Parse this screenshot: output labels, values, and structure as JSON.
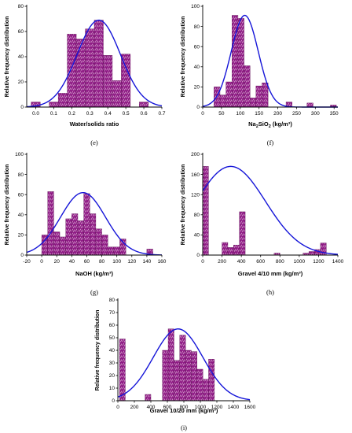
{
  "chart_data": [
    {
      "type": "bar",
      "panel_label": "(e)",
      "xlabel": "Water/solids ratio",
      "ylabel": "Relative frequency distribution",
      "xlim": [
        -0.05,
        0.7
      ],
      "ylim": [
        0,
        80
      ],
      "xticks": [
        0.0,
        0.1,
        0.2,
        0.3,
        0.4,
        0.5,
        0.6,
        0.7
      ],
      "xtick_labels": [
        "0.0",
        "0.1",
        "0.2",
        "0.3",
        "0.4",
        "0.5",
        "0.6",
        "0.7"
      ],
      "yticks": [
        0,
        20,
        40,
        60,
        80
      ],
      "ytick_labels": [
        "0",
        "20",
        "40",
        "60",
        "80"
      ],
      "bin_width": 0.05,
      "bins": [
        {
          "x0": -0.025,
          "value": 4
        },
        {
          "x0": 0.025,
          "value": 0
        },
        {
          "x0": 0.075,
          "value": 4
        },
        {
          "x0": 0.125,
          "value": 11
        },
        {
          "x0": 0.175,
          "value": 58
        },
        {
          "x0": 0.225,
          "value": 54
        },
        {
          "x0": 0.275,
          "value": 62
        },
        {
          "x0": 0.325,
          "value": 69
        },
        {
          "x0": 0.375,
          "value": 41
        },
        {
          "x0": 0.425,
          "value": 21
        },
        {
          "x0": 0.475,
          "value": 42
        },
        {
          "x0": 0.525,
          "value": 0
        },
        {
          "x0": 0.575,
          "value": 4
        }
      ],
      "fit_curve": {
        "mean": 0.35,
        "sd": 0.12,
        "peak": 69
      }
    },
    {
      "type": "bar",
      "panel_label": "(f)",
      "xlabel_parts": [
        "Na",
        "2",
        "SiO",
        "2",
        " (kg/m³)"
      ],
      "ylabel": "Relative frequency distribution",
      "xlim": [
        0,
        360
      ],
      "ylim": [
        0,
        100
      ],
      "xticks": [
        0,
        50,
        100,
        150,
        200,
        250,
        300,
        350
      ],
      "xtick_labels": [
        "0",
        "50",
        "100",
        "150",
        "200",
        "250",
        "300",
        "350"
      ],
      "yticks": [
        0,
        20,
        40,
        60,
        80,
        100
      ],
      "ytick_labels": [
        "0",
        "20",
        "40",
        "60",
        "80",
        "100"
      ],
      "bin_width": 16,
      "bins": [
        {
          "x0": 30,
          "value": 20
        },
        {
          "x0": 46,
          "value": 12
        },
        {
          "x0": 62,
          "value": 25
        },
        {
          "x0": 78,
          "value": 91
        },
        {
          "x0": 94,
          "value": 88
        },
        {
          "x0": 110,
          "value": 41
        },
        {
          "x0": 126,
          "value": 9
        },
        {
          "x0": 142,
          "value": 21
        },
        {
          "x0": 158,
          "value": 24
        },
        {
          "x0": 222,
          "value": 5
        },
        {
          "x0": 278,
          "value": 4
        },
        {
          "x0": 340,
          "value": 2
        }
      ],
      "fit_curve": {
        "mean": 112,
        "sd": 36,
        "peak": 91
      }
    },
    {
      "type": "bar",
      "panel_label": "(g)",
      "xlabel": "NaOH (kg/m³)",
      "ylabel": "Relative frequency distribution",
      "xlim": [
        -20,
        160
      ],
      "ylim": [
        0,
        100
      ],
      "xticks": [
        -20,
        0,
        20,
        40,
        60,
        80,
        100,
        120,
        140,
        160
      ],
      "xtick_labels": [
        "-20",
        "0",
        "20",
        "40",
        "60",
        "80",
        "100",
        "120",
        "140",
        "160"
      ],
      "yticks": [
        0,
        20,
        40,
        60,
        80,
        100
      ],
      "ytick_labels": [
        "0",
        "20",
        "40",
        "60",
        "80",
        "100"
      ],
      "bin_width": 8,
      "bins": [
        {
          "x0": 0,
          "value": 20
        },
        {
          "x0": 8,
          "value": 63
        },
        {
          "x0": 16,
          "value": 23
        },
        {
          "x0": 24,
          "value": 18
        },
        {
          "x0": 32,
          "value": 36
        },
        {
          "x0": 40,
          "value": 41
        },
        {
          "x0": 48,
          "value": 34
        },
        {
          "x0": 56,
          "value": 61
        },
        {
          "x0": 64,
          "value": 41
        },
        {
          "x0": 72,
          "value": 26
        },
        {
          "x0": 80,
          "value": 20
        },
        {
          "x0": 88,
          "value": 8
        },
        {
          "x0": 96,
          "value": 8
        },
        {
          "x0": 104,
          "value": 16
        },
        {
          "x0": 140,
          "value": 6
        }
      ],
      "fit_curve": {
        "mean": 55,
        "sd": 30,
        "peak": 62
      }
    },
    {
      "type": "bar",
      "panel_label": "(h)",
      "xlabel": "Gravel 4/10 mm (kg/m³)",
      "ylabel": "Relative frequency distribution",
      "xlim": [
        0,
        1400
      ],
      "ylim": [
        0,
        200
      ],
      "xticks": [
        0,
        200,
        400,
        600,
        800,
        1000,
        1200,
        1400
      ],
      "xtick_labels": [
        "0",
        "200",
        "400",
        "600",
        "800",
        "1000",
        "1200",
        "1400"
      ],
      "yticks": [
        0,
        40,
        80,
        120,
        160,
        200
      ],
      "ytick_labels": [
        "0",
        "40",
        "80",
        "120",
        "160",
        "200"
      ],
      "bin_width": 60,
      "bins": [
        {
          "x0": 0,
          "value": 176
        },
        {
          "x0": 200,
          "value": 25
        },
        {
          "x0": 260,
          "value": 15
        },
        {
          "x0": 320,
          "value": 20
        },
        {
          "x0": 380,
          "value": 86
        },
        {
          "x0": 740,
          "value": 4
        },
        {
          "x0": 1040,
          "value": 4
        },
        {
          "x0": 1100,
          "value": 7
        },
        {
          "x0": 1160,
          "value": 11
        },
        {
          "x0": 1220,
          "value": 24
        }
      ],
      "fit_curve": {
        "mean": 290,
        "sd": 360,
        "peak": 176
      }
    },
    {
      "type": "bar",
      "panel_label": "(i)",
      "xlabel": "Gravel 10/20 mm (kg/m³)",
      "ylabel": "Relative frequency distribution",
      "xlim": [
        0,
        1600
      ],
      "ylim": [
        0,
        80
      ],
      "xticks": [
        0,
        200,
        400,
        600,
        800,
        1000,
        1200,
        1400,
        1600
      ],
      "xtick_labels": [
        "0",
        "200",
        "400",
        "600",
        "800",
        "1000",
        "1200",
        "1400",
        "1600"
      ],
      "yticks": [
        0,
        10,
        20,
        30,
        40,
        50,
        60,
        70,
        80
      ],
      "ytick_labels": [
        "0",
        "10",
        "20",
        "30",
        "40",
        "50",
        "60",
        "70",
        "80"
      ],
      "bin_width": 70,
      "bins": [
        {
          "x0": 20,
          "value": 49
        },
        {
          "x0": 330,
          "value": 5
        },
        {
          "x0": 540,
          "value": 40
        },
        {
          "x0": 610,
          "value": 57
        },
        {
          "x0": 680,
          "value": 32
        },
        {
          "x0": 750,
          "value": 52
        },
        {
          "x0": 820,
          "value": 40
        },
        {
          "x0": 890,
          "value": 39
        },
        {
          "x0": 960,
          "value": 25
        },
        {
          "x0": 1030,
          "value": 17
        },
        {
          "x0": 1100,
          "value": 33
        }
      ],
      "fit_curve": {
        "mean": 730,
        "sd": 300,
        "peak": 57
      }
    }
  ]
}
